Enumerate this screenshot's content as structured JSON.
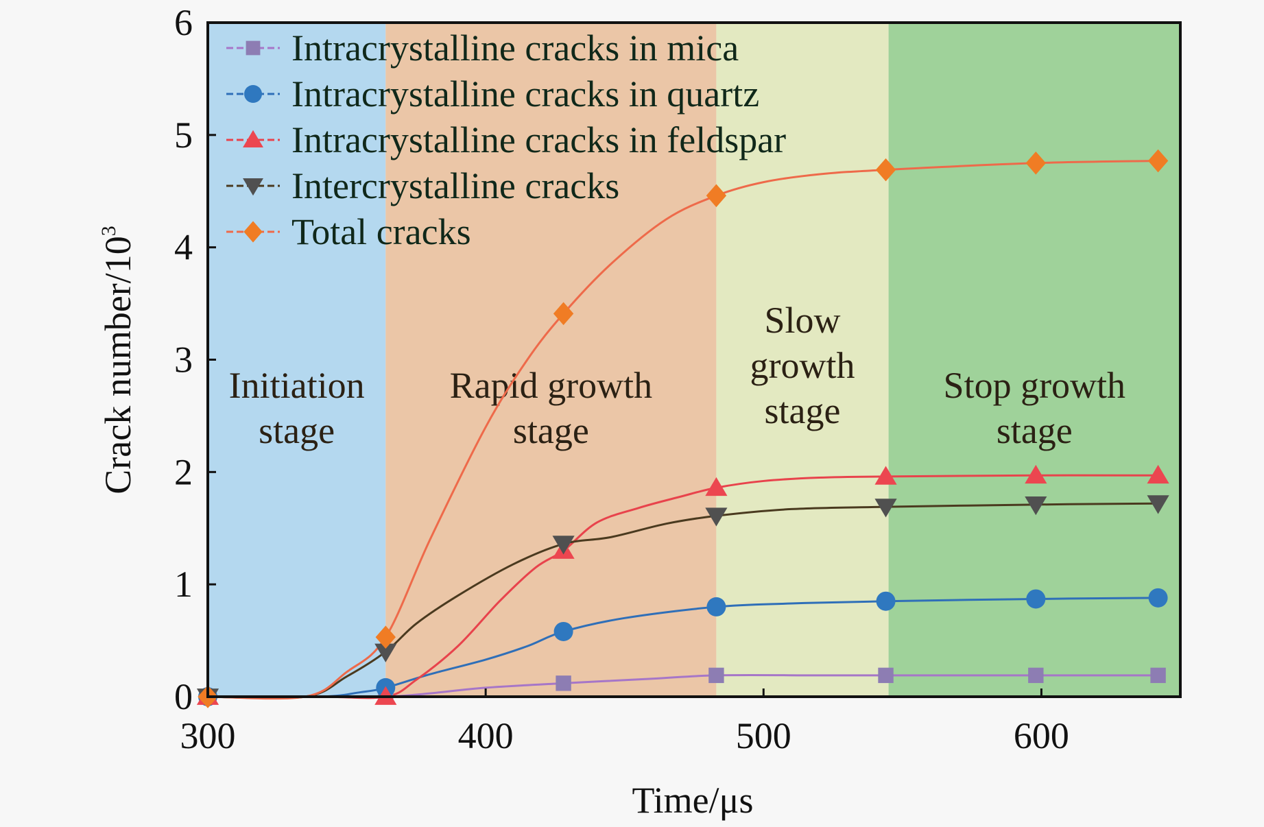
{
  "chart_data": {
    "type": "line",
    "title": "",
    "xlabel": "Time/μs",
    "ylabel": "Crack number/10",
    "ylabel_sup": "3",
    "xlim": [
      300,
      650
    ],
    "ylim": [
      0,
      6
    ],
    "xticks": [
      300,
      400,
      500,
      600
    ],
    "yticks": [
      0,
      1,
      2,
      3,
      4,
      5,
      6
    ],
    "grid": false,
    "legend_position": "top-left",
    "stages": [
      {
        "label_lines": [
          "Initiation",
          "stage"
        ],
        "x_start": 300,
        "x_end": 364,
        "color": "#b4d8ef"
      },
      {
        "label_lines": [
          "Rapid growth",
          "stage"
        ],
        "x_start": 364,
        "x_end": 483,
        "color": "#ebc6a7"
      },
      {
        "label_lines": [
          "Slow",
          "growth",
          "stage"
        ],
        "x_start": 483,
        "x_end": 545,
        "color": "#e3e9c1"
      },
      {
        "label_lines": [
          "Stop growth",
          "stage"
        ],
        "x_start": 545,
        "x_end": 650,
        "color": "#9fd29a"
      }
    ],
    "series": [
      {
        "name": "Intracrystalline cracks in mica",
        "marker": "square",
        "color": "#8d7db3",
        "line_color": "#a676c8",
        "marker_x": [
          300,
          364,
          428,
          483,
          544,
          598,
          642
        ],
        "marker_y": [
          0,
          0,
          0.12,
          0.19,
          0.19,
          0.19,
          0.19
        ],
        "curve_x": [
          300,
          340,
          364,
          380,
          400,
          428,
          460,
          483,
          520,
          544,
          598,
          642
        ],
        "curve_y": [
          0,
          0,
          0.0,
          0.03,
          0.08,
          0.12,
          0.16,
          0.19,
          0.19,
          0.19,
          0.19,
          0.19
        ]
      },
      {
        "name": "Intracrystalline cracks in quartz",
        "marker": "circle",
        "color": "#2f78bf",
        "line_color": "#2f6fb8",
        "marker_x": [
          300,
          364,
          428,
          483,
          544,
          598,
          642
        ],
        "marker_y": [
          0,
          0.08,
          0.58,
          0.8,
          0.85,
          0.87,
          0.88
        ],
        "curve_x": [
          300,
          340,
          355,
          364,
          380,
          400,
          415,
          428,
          450,
          483,
          510,
          544,
          598,
          642
        ],
        "curve_y": [
          0,
          0,
          0.04,
          0.08,
          0.2,
          0.33,
          0.45,
          0.58,
          0.7,
          0.8,
          0.83,
          0.85,
          0.87,
          0.88
        ]
      },
      {
        "name": "Intracrystalline cracks in feldspar",
        "marker": "triangle-up",
        "color": "#ec4650",
        "line_color": "#e8434c",
        "marker_x": [
          300,
          364,
          428,
          483,
          544,
          598,
          642
        ],
        "marker_y": [
          0,
          0,
          1.3,
          1.86,
          1.96,
          1.97,
          1.97
        ],
        "curve_x": [
          300,
          340,
          364,
          375,
          390,
          405,
          418,
          428,
          440,
          455,
          470,
          483,
          500,
          520,
          544,
          598,
          642
        ],
        "curve_y": [
          0,
          0,
          0,
          0.15,
          0.45,
          0.85,
          1.15,
          1.3,
          1.55,
          1.68,
          1.78,
          1.86,
          1.92,
          1.95,
          1.96,
          1.97,
          1.97
        ]
      },
      {
        "name": "Intercrystalline cracks",
        "marker": "triangle-down",
        "color": "#505050",
        "line_color": "#4a3a1f",
        "marker_x": [
          300,
          364,
          428,
          483,
          544,
          598,
          642
        ],
        "marker_y": [
          0,
          0.4,
          1.36,
          1.61,
          1.69,
          1.71,
          1.72
        ],
        "curve_x": [
          300,
          335,
          350,
          364,
          375,
          390,
          410,
          428,
          445,
          465,
          483,
          510,
          544,
          598,
          642
        ],
        "curve_y": [
          0,
          0,
          0.18,
          0.4,
          0.65,
          0.9,
          1.18,
          1.36,
          1.42,
          1.54,
          1.61,
          1.67,
          1.69,
          1.71,
          1.72
        ]
      },
      {
        "name": "Total cracks",
        "marker": "diamond",
        "color": "#f07c24",
        "line_color": "#ee6a4a",
        "marker_x": [
          300,
          364,
          428,
          483,
          544,
          598,
          642
        ],
        "marker_y": [
          0,
          0.53,
          3.41,
          4.46,
          4.69,
          4.75,
          4.77
        ],
        "curve_x": [
          300,
          335,
          350,
          364,
          380,
          400,
          415,
          428,
          445,
          465,
          483,
          500,
          520,
          544,
          598,
          642
        ],
        "curve_y": [
          0,
          0,
          0.22,
          0.53,
          1.4,
          2.4,
          3.0,
          3.41,
          3.85,
          4.25,
          4.46,
          4.58,
          4.65,
          4.69,
          4.75,
          4.77
        ]
      }
    ]
  }
}
